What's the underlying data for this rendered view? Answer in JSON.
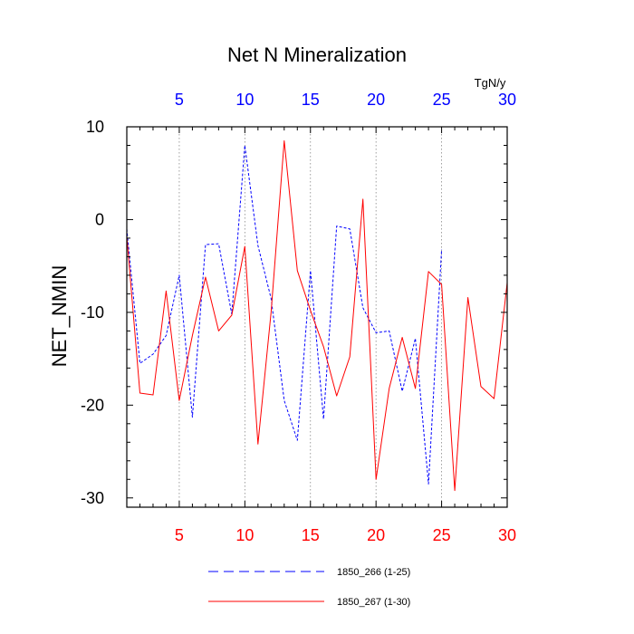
{
  "chart_data": {
    "type": "line",
    "title": "Net N Mineralization",
    "ylabel": "NET_NMIN",
    "units": "TgN/y",
    "xlim": [
      1,
      30
    ],
    "ylim": [
      -31,
      10
    ],
    "x_ticks": [
      5,
      10,
      15,
      20,
      25,
      30
    ],
    "y_ticks": [
      10,
      0,
      -10,
      -20,
      -30
    ],
    "bottom_axis_color": "#ff0000",
    "top_axis_color": "#0000ff",
    "grid": "dotted vertical at x ticks",
    "legend_position": "bottom",
    "series": [
      {
        "name": "1850_266 (1-25)",
        "color": "#0000ff",
        "style": "dashed",
        "x": [
          1,
          2,
          3,
          4,
          5,
          6,
          7,
          8,
          9,
          10,
          11,
          12,
          13,
          14,
          15,
          16,
          17,
          18,
          19,
          20,
          21,
          22,
          23,
          24,
          25
        ],
        "values": [
          -1.0,
          -15.5,
          -14.5,
          -12.5,
          -6.0,
          -21.3,
          -2.7,
          -2.6,
          -10.2,
          8.0,
          -2.8,
          -8.5,
          -19.5,
          -23.8,
          -5.5,
          -21.5,
          -0.7,
          -1.0,
          -9.5,
          -12.2,
          -12.0,
          -18.5,
          -12.8,
          -28.5,
          -3.2
        ]
      },
      {
        "name": "1850_267 (1-30)",
        "color": "#ff0000",
        "style": "solid",
        "x": [
          1,
          2,
          3,
          4,
          5,
          6,
          7,
          8,
          9,
          10,
          11,
          12,
          13,
          14,
          15,
          16,
          17,
          18,
          19,
          20,
          21,
          22,
          23,
          24,
          25,
          26,
          27,
          28,
          29,
          30
        ],
        "values": [
          -1.8,
          -18.7,
          -18.9,
          -7.7,
          -19.5,
          -12.5,
          -6.2,
          -12.0,
          -10.3,
          -2.9,
          -24.2,
          -10.0,
          8.5,
          -5.5,
          -9.8,
          -13.7,
          -19.0,
          -14.8,
          2.2,
          -28.0,
          -18.2,
          -12.7,
          -18.2,
          -5.6,
          -7.0,
          -29.2,
          -8.4,
          -18.0,
          -19.3,
          -6.8
        ]
      }
    ]
  }
}
